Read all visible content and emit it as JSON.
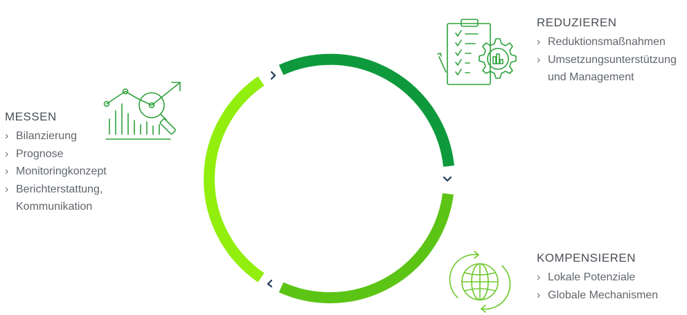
{
  "messen": {
    "title": "MESSEN",
    "items": [
      "Bilanzierung",
      "Prognose",
      "Monitoringkonzept",
      "Berichterstattung,",
      "Kommunikation"
    ]
  },
  "reduzieren": {
    "title": "REDUZIEREN",
    "items": [
      "Reduktionsmaßnahmen",
      "Umsetzungsunterstützung",
      "und Management"
    ]
  },
  "kompensieren": {
    "title": "KOMPENSIEREN",
    "items": [
      "Lokale Potenziale",
      "Globale Mechanismen"
    ]
  },
  "icons": {
    "messen": "chart-magnifier-icon",
    "reduzieren": "clipboard-gear-icon",
    "kompensieren": "globe-cycle-icon"
  },
  "colors": {
    "arc_top": "#0e9a3c",
    "arc_bottom": "#5cc415",
    "arc_left": "#92ee0c",
    "arrow": "#1f3a5a",
    "text": "#5a5f64"
  }
}
